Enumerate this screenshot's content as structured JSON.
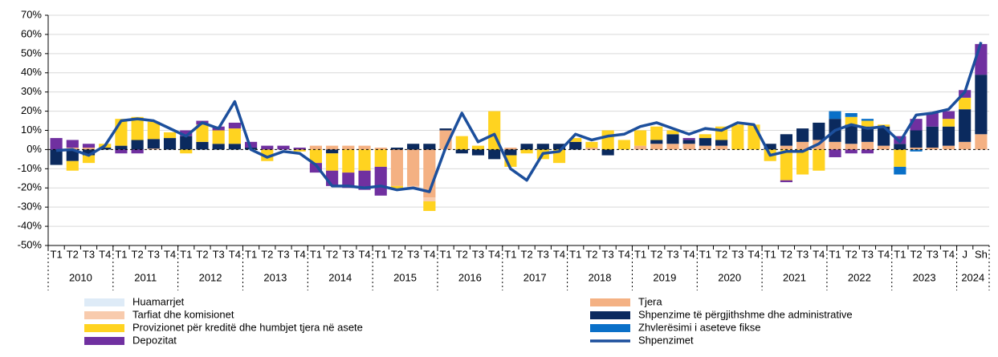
{
  "chart_data": {
    "type": "stacked_bar_line",
    "category_groups": [
      {
        "name": "2010",
        "categories": [
          "T1",
          "T2",
          "T3",
          "T4"
        ]
      },
      {
        "name": "2011",
        "categories": [
          "T1",
          "T2",
          "T3",
          "T4"
        ]
      },
      {
        "name": "2012",
        "categories": [
          "T1",
          "T2",
          "T3",
          "T4"
        ]
      },
      {
        "name": "2013",
        "categories": [
          "T1",
          "T2",
          "T3",
          "T4"
        ]
      },
      {
        "name": "2014",
        "categories": [
          "T1",
          "T2",
          "T3",
          "T4"
        ]
      },
      {
        "name": "2015",
        "categories": [
          "T1",
          "T2",
          "T3",
          "T4"
        ]
      },
      {
        "name": "2016",
        "categories": [
          "T1",
          "T2",
          "T3",
          "T4"
        ]
      },
      {
        "name": "2017",
        "categories": [
          "T1",
          "T2",
          "T3",
          "T4"
        ]
      },
      {
        "name": "2018",
        "categories": [
          "T1",
          "T2",
          "T3",
          "T4"
        ]
      },
      {
        "name": "2019",
        "categories": [
          "T1",
          "T2",
          "T3",
          "T4"
        ]
      },
      {
        "name": "2020",
        "categories": [
          "T1",
          "T2",
          "T3",
          "T4"
        ]
      },
      {
        "name": "2021",
        "categories": [
          "T1",
          "T2",
          "T3",
          "T4"
        ]
      },
      {
        "name": "2022",
        "categories": [
          "T1",
          "T2",
          "T3",
          "T4"
        ]
      },
      {
        "name": "2023",
        "categories": [
          "T1",
          "T2",
          "T3",
          "T4"
        ]
      },
      {
        "name": "2024",
        "categories": [
          "J",
          "Sh"
        ]
      }
    ],
    "series": [
      {
        "name": "Huamarrjet",
        "color": "#deebf7",
        "values": [
          0,
          0,
          0,
          0,
          0,
          0,
          0,
          0,
          0,
          0,
          0,
          0,
          0,
          0,
          0,
          0,
          0,
          0,
          0,
          0,
          0,
          0,
          0,
          0,
          0,
          0,
          0,
          0,
          0,
          0,
          0,
          0,
          0,
          0,
          0,
          0,
          0,
          0,
          0,
          0,
          0,
          0,
          0,
          0,
          0,
          0,
          0,
          0,
          0,
          0,
          0,
          0,
          0,
          0,
          0,
          0,
          0,
          0
        ]
      },
      {
        "name": "Tarfiat dhe komisionet",
        "color": "#f8cbad",
        "values": [
          0,
          0,
          0,
          0,
          0,
          0,
          0,
          0,
          0,
          0,
          0,
          0,
          0,
          0,
          0,
          0,
          0,
          0,
          0,
          0,
          0,
          0,
          -1,
          -2,
          0,
          0,
          0,
          0,
          0,
          0,
          0,
          0,
          0,
          0,
          0,
          0,
          0,
          0,
          0,
          0,
          0,
          0,
          0,
          0,
          0,
          0,
          0,
          0,
          0,
          0,
          0,
          0,
          0,
          0,
          0,
          0,
          0,
          0
        ]
      },
      {
        "name": "Provizionet për kreditë dhe humbjet tjera në asete",
        "color": "#ffd320",
        "values": [
          0,
          -5,
          -4,
          2,
          14,
          12,
          9,
          3,
          -2,
          9,
          7,
          8,
          0,
          -6,
          0,
          -1,
          -7,
          -9,
          -12,
          -11,
          -9,
          -2,
          0,
          -5,
          0,
          7,
          2,
          20,
          -6,
          -2,
          -5,
          -7,
          2,
          3,
          10,
          5,
          8,
          7,
          2,
          0,
          2,
          7,
          13,
          13,
          -6,
          -16,
          -13,
          -11,
          0,
          4,
          3,
          1,
          -9,
          0,
          0,
          4,
          6,
          0
        ]
      },
      {
        "name": "Depozitat",
        "color": "#7030a0",
        "values": [
          6,
          4,
          2,
          0,
          -2,
          -2,
          0,
          0,
          3,
          2,
          2,
          3,
          3,
          2,
          2,
          1,
          -5,
          -8,
          -8,
          -10,
          -15,
          0,
          0,
          0,
          0,
          0,
          0,
          0,
          0,
          0,
          0,
          0,
          0,
          0,
          0,
          0,
          0,
          0,
          0,
          1,
          0,
          0,
          0,
          0,
          0,
          -1,
          0,
          0,
          -4,
          -2,
          -2,
          0,
          4,
          6,
          7,
          4,
          4,
          16
        ]
      },
      {
        "name": "Tjera",
        "color": "#f4b183",
        "values": [
          0,
          1,
          1,
          0,
          0,
          0,
          0.5,
          0,
          0,
          0,
          0,
          0,
          0,
          0,
          0,
          0,
          2,
          2,
          2,
          2,
          1,
          -19,
          -19,
          -25,
          10,
          0,
          0,
          0,
          1,
          0,
          0,
          0,
          0,
          1,
          0,
          0,
          2,
          3,
          3,
          3,
          2,
          2,
          0,
          0,
          0,
          2,
          4,
          5,
          4,
          3,
          4,
          2,
          0,
          1,
          1,
          2,
          4,
          8
        ]
      },
      {
        "name": "Shpenzime të përgjithshme dhe administrative",
        "color": "#0b2a5e",
        "values": [
          -8,
          -6,
          -3,
          1,
          2,
          5,
          5,
          6,
          7,
          4,
          3,
          3,
          1,
          0,
          0,
          0,
          0,
          -2,
          0,
          0,
          0,
          1,
          3,
          3,
          1,
          -2,
          -3,
          -5,
          -3,
          3,
          3,
          3,
          4,
          0,
          -3,
          0,
          0,
          2,
          5,
          2,
          4,
          3,
          0,
          0,
          3,
          6,
          7,
          9,
          12,
          10,
          8,
          10,
          3,
          9,
          11,
          10,
          17,
          31
        ]
      },
      {
        "name": "Zhvlerësimi i aseteve fikse",
        "color": "#0a70c8",
        "values": [
          0,
          0,
          0,
          0,
          0,
          0,
          0,
          0,
          0,
          0,
          0,
          0,
          0,
          0,
          0,
          0,
          0,
          0,
          0,
          0,
          0,
          0,
          0,
          0,
          0,
          0,
          0,
          0,
          0,
          0,
          0,
          0,
          0,
          0,
          0,
          0,
          0,
          0,
          0,
          0,
          0,
          0,
          0,
          0,
          0,
          0,
          0,
          0,
          4,
          2,
          1,
          0,
          -4,
          -1,
          0,
          0,
          0,
          0
        ]
      }
    ],
    "line": {
      "name": "Shpenzimet",
      "color": "#1c4f9c",
      "values": [
        -0.5,
        0,
        -3,
        2,
        15,
        16,
        15,
        11,
        7,
        14,
        11,
        25,
        0,
        -4,
        -1,
        -2,
        -8,
        -19,
        -19,
        -20,
        -19,
        -21,
        -20,
        -22,
        1,
        19,
        4,
        8,
        -10,
        -16,
        -2,
        -1,
        8,
        5,
        7,
        8,
        12,
        14,
        11,
        8,
        11,
        10,
        14,
        13,
        -3,
        -1,
        -1,
        3,
        10,
        13,
        11,
        12,
        4,
        18,
        19,
        21,
        30,
        56
      ]
    },
    "ylim": [
      -50,
      70
    ],
    "yticks": [
      {
        "value": -50,
        "label": "-50%"
      },
      {
        "value": -40,
        "label": "-40%"
      },
      {
        "value": -30,
        "label": "-30%"
      },
      {
        "value": -20,
        "label": "-20%"
      },
      {
        "value": -10,
        "label": "-10%"
      },
      {
        "value": 0,
        "label": "0%"
      },
      {
        "value": 10,
        "label": "10%"
      },
      {
        "value": 20,
        "label": "20%"
      },
      {
        "value": 30,
        "label": "30%"
      },
      {
        "value": 40,
        "label": "40%"
      },
      {
        "value": 50,
        "label": "50%"
      },
      {
        "value": 60,
        "label": "60%"
      },
      {
        "value": 70,
        "label": "70%"
      }
    ],
    "grid": true
  }
}
